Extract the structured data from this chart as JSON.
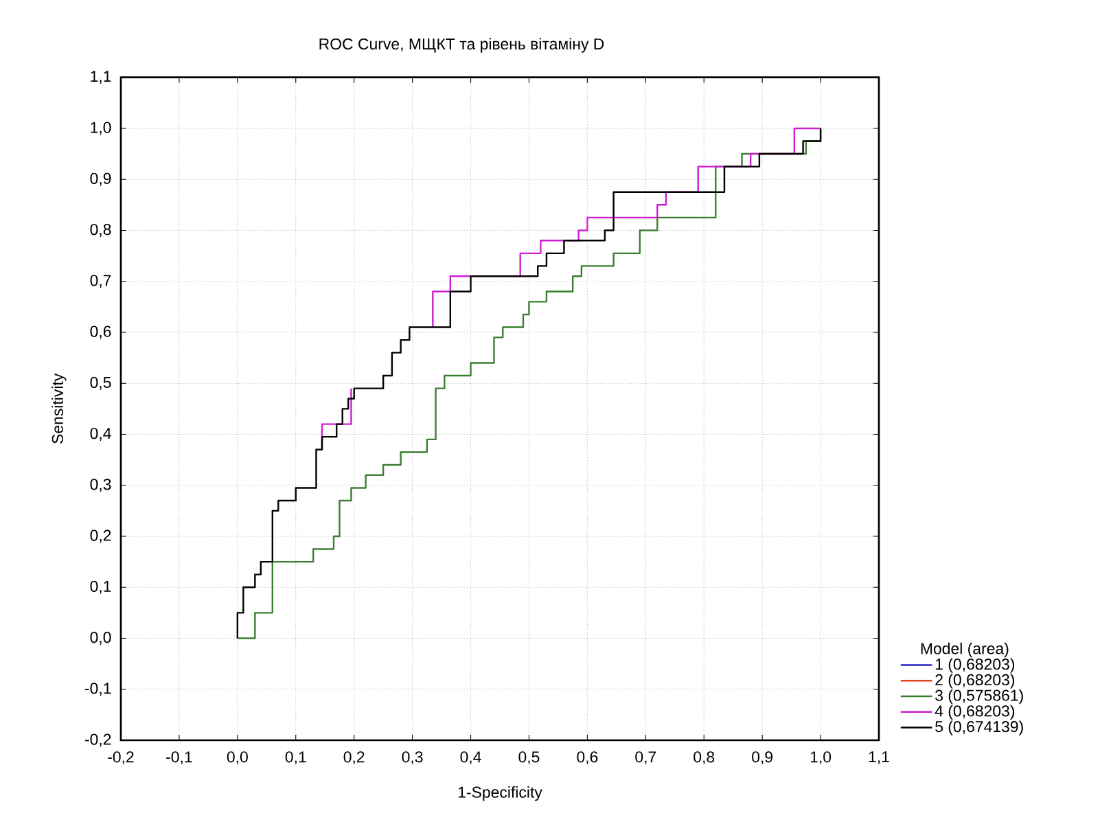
{
  "chart_data": {
    "type": "line",
    "title": "ROC Curve, МЩКТ та рівень вітаміну D",
    "xlabel": "1-Specificity",
    "ylabel": "Sensitivity",
    "legend_title": "Model (area)",
    "xlim": [
      -0.2,
      1.1
    ],
    "ylim": [
      -0.2,
      1.1
    ],
    "xticks": [
      {
        "value": -0.2,
        "label": "-0,2"
      },
      {
        "value": -0.1,
        "label": "-0,1"
      },
      {
        "value": 0.0,
        "label": "0,0"
      },
      {
        "value": 0.1,
        "label": "0,1"
      },
      {
        "value": 0.2,
        "label": "0,2"
      },
      {
        "value": 0.3,
        "label": "0,3"
      },
      {
        "value": 0.4,
        "label": "0,4"
      },
      {
        "value": 0.5,
        "label": "0,5"
      },
      {
        "value": 0.6,
        "label": "0,6"
      },
      {
        "value": 0.7,
        "label": "0,7"
      },
      {
        "value": 0.8,
        "label": "0,8"
      },
      {
        "value": 0.9,
        "label": "0,9"
      },
      {
        "value": 1.0,
        "label": "1,0"
      },
      {
        "value": 1.1,
        "label": "1,1"
      }
    ],
    "yticks": [
      {
        "value": -0.2,
        "label": "-0,2"
      },
      {
        "value": -0.1,
        "label": "-0,1"
      },
      {
        "value": 0.0,
        "label": "0,0"
      },
      {
        "value": 0.1,
        "label": "0,1"
      },
      {
        "value": 0.2,
        "label": "0,2"
      },
      {
        "value": 0.3,
        "label": "0,3"
      },
      {
        "value": 0.4,
        "label": "0,4"
      },
      {
        "value": 0.5,
        "label": "0,5"
      },
      {
        "value": 0.6,
        "label": "0,6"
      },
      {
        "value": 0.7,
        "label": "0,7"
      },
      {
        "value": 0.8,
        "label": "0,8"
      },
      {
        "value": 0.9,
        "label": "0,9"
      },
      {
        "value": 1.0,
        "label": "1,0"
      },
      {
        "value": 1.1,
        "label": "1,1"
      }
    ],
    "grid": true,
    "legend": "bottom right",
    "series": [
      {
        "name": "1 (0,68203)",
        "color": "#2424c8"
      },
      {
        "name": "2 (0,68203)",
        "color": "#e0401c"
      },
      {
        "name": "3 (0,575861)",
        "color": "#3a7f30",
        "x": [
          0,
          0.03,
          0.03,
          0.06,
          0.06,
          0.13,
          0.13,
          0.165,
          0.165,
          0.175,
          0.175,
          0.195,
          0.195,
          0.22,
          0.22,
          0.25,
          0.25,
          0.28,
          0.28,
          0.325,
          0.325,
          0.34,
          0.34,
          0.355,
          0.355,
          0.4,
          0.4,
          0.44,
          0.44,
          0.455,
          0.455,
          0.49,
          0.49,
          0.5,
          0.5,
          0.53,
          0.53,
          0.575,
          0.575,
          0.59,
          0.59,
          0.645,
          0.645,
          0.69,
          0.69,
          0.72,
          0.72,
          0.82,
          0.82,
          0.865,
          0.865,
          0.975,
          0.975,
          1.0,
          1.0
        ],
        "values": [
          0,
          0,
          0.05,
          0.05,
          0.15,
          0.15,
          0.175,
          0.175,
          0.2,
          0.2,
          0.27,
          0.27,
          0.295,
          0.295,
          0.32,
          0.32,
          0.34,
          0.34,
          0.365,
          0.365,
          0.39,
          0.39,
          0.49,
          0.49,
          0.515,
          0.515,
          0.54,
          0.54,
          0.59,
          0.59,
          0.61,
          0.61,
          0.635,
          0.635,
          0.66,
          0.66,
          0.68,
          0.68,
          0.71,
          0.71,
          0.73,
          0.73,
          0.755,
          0.755,
          0.8,
          0.8,
          0.825,
          0.825,
          0.925,
          0.925,
          0.95,
          0.95,
          0.975,
          0.975,
          1.0
        ]
      },
      {
        "name": "4 (0,68203)",
        "color": "#d21ed2",
        "x": [
          0.145,
          0.145,
          0.195,
          0.195,
          null,
          0.335,
          0.335,
          0.365,
          0.365,
          0.485,
          0.485,
          0.52,
          0.52,
          0.585,
          0.585,
          0.6,
          0.6,
          0.72,
          0.72,
          0.735,
          0.735,
          0.79,
          0.79,
          0.88,
          0.88,
          0.955,
          0.955,
          1.0
        ],
        "values": [
          0.37,
          0.42,
          0.42,
          0.49,
          null,
          0.61,
          0.68,
          0.68,
          0.71,
          0.71,
          0.755,
          0.755,
          0.78,
          0.78,
          0.8,
          0.8,
          0.825,
          0.825,
          0.85,
          0.85,
          0.875,
          0.875,
          0.925,
          0.925,
          0.95,
          0.95,
          1.0,
          1.0
        ]
      },
      {
        "name": "5 (0,674139)",
        "color": "#000000",
        "x": [
          0,
          0,
          0.01,
          0.01,
          0.03,
          0.03,
          0.04,
          0.04,
          0.06,
          0.06,
          0.07,
          0.07,
          0.1,
          0.1,
          0.135,
          0.135,
          0.145,
          0.145,
          0.17,
          0.17,
          0.18,
          0.18,
          0.19,
          0.19,
          0.2,
          0.2,
          0.25,
          0.25,
          0.265,
          0.265,
          0.28,
          0.28,
          0.295,
          0.295,
          0.365,
          0.365,
          0.4,
          0.4,
          0.515,
          0.515,
          0.53,
          0.53,
          0.56,
          0.56,
          0.63,
          0.63,
          0.645,
          0.645,
          0.835,
          0.835,
          0.895,
          0.895,
          0.97,
          0.97,
          1.0,
          1.0
        ],
        "values": [
          0,
          0.05,
          0.05,
          0.1,
          0.1,
          0.125,
          0.125,
          0.15,
          0.15,
          0.25,
          0.25,
          0.27,
          0.27,
          0.295,
          0.295,
          0.37,
          0.37,
          0.395,
          0.395,
          0.42,
          0.42,
          0.45,
          0.45,
          0.47,
          0.47,
          0.49,
          0.49,
          0.515,
          0.515,
          0.56,
          0.56,
          0.585,
          0.585,
          0.61,
          0.61,
          0.68,
          0.68,
          0.71,
          0.71,
          0.73,
          0.73,
          0.755,
          0.755,
          0.78,
          0.78,
          0.8,
          0.8,
          0.875,
          0.875,
          0.925,
          0.925,
          0.95,
          0.95,
          0.975,
          0.975,
          1.0
        ]
      }
    ]
  }
}
